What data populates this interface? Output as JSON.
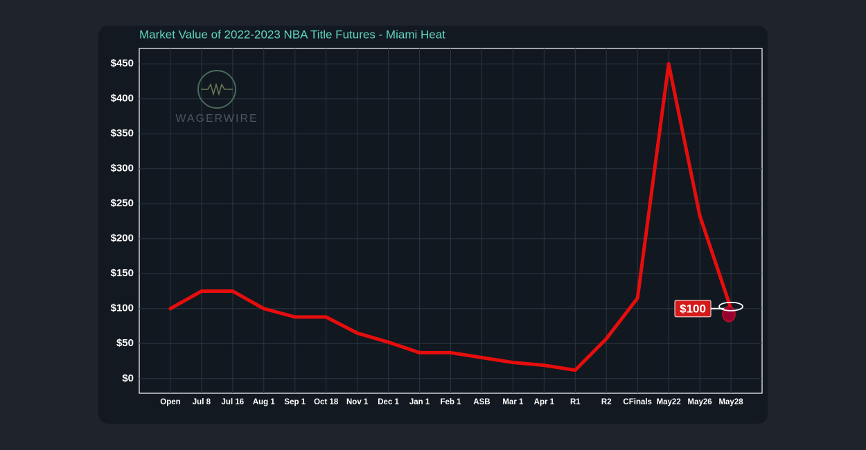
{
  "chart_data": {
    "type": "line",
    "title": "Market Value of 2022-2023 NBA Title Futures - Miami Heat",
    "watermark": "WAGERWIRE",
    "categories": [
      "Open",
      "Jul 8",
      "Jul 16",
      "Aug 1",
      "Sep 1",
      "Oct 18",
      "Nov 1",
      "Dec 1",
      "Jan 1",
      "Feb 1",
      "ASB",
      "Mar 1",
      "Apr 1",
      "R1",
      "R2",
      "CFinals",
      "May22",
      "May26",
      "May28"
    ],
    "series": [
      {
        "name": "Miami Heat",
        "color": "#e60d0d",
        "values": [
          100,
          125,
          125,
          100,
          88,
          88,
          65,
          52,
          37,
          37,
          30,
          23,
          19,
          12,
          57,
          115,
          450,
          233,
          100
        ],
        "value_labels": [
          null,
          null,
          null,
          null,
          null,
          null,
          null,
          null,
          null,
          null,
          null,
          null,
          null,
          null,
          null,
          null,
          null,
          null,
          "$100"
        ]
      }
    ],
    "ylim": [
      -21,
      472
    ],
    "yticks": [
      {
        "value": 0,
        "label": "$0"
      },
      {
        "value": 50,
        "label": "$50"
      },
      {
        "value": 100,
        "label": "$100"
      },
      {
        "value": 150,
        "label": "$150"
      },
      {
        "value": 200,
        "label": "$200"
      },
      {
        "value": 250,
        "label": "$250"
      },
      {
        "value": 300,
        "label": "$300"
      },
      {
        "value": 350,
        "label": "$350"
      },
      {
        "value": 400,
        "label": "$400"
      },
      {
        "value": 450,
        "label": "$450"
      }
    ],
    "grid": true
  }
}
